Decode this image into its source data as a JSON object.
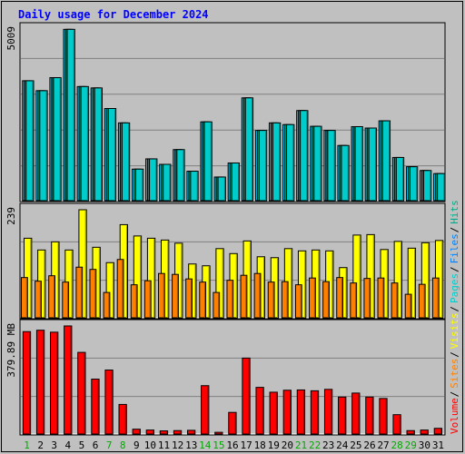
{
  "chart_data": {
    "type": "bar",
    "title": "Daily usage for December 2024",
    "colors": {
      "background": "#c0c0c0",
      "title": "#0000ff",
      "hits": "#00ccff",
      "files": "#009966",
      "pages": "#00cccc",
      "visits": "#ffff00",
      "sites": "#ff8000",
      "volume": "#ff0000",
      "weekend_label": "#00aa00",
      "weekday_label": "#000000",
      "grid": "#808080"
    },
    "categories": [
      "1",
      "2",
      "3",
      "4",
      "5",
      "6",
      "7",
      "8",
      "9",
      "10",
      "11",
      "12",
      "13",
      "14",
      "15",
      "16",
      "17",
      "18",
      "19",
      "20",
      "21",
      "22",
      "23",
      "24",
      "25",
      "26",
      "27",
      "28",
      "29",
      "30",
      "31"
    ],
    "weekend_days": [
      "1",
      "7",
      "8",
      "14",
      "15",
      "21",
      "22",
      "28",
      "29"
    ],
    "panels": [
      {
        "id": "hits-files-pages",
        "ylabel": "5009",
        "ylim": [
          0,
          5009
        ],
        "series": [
          {
            "name": "Hits",
            "color": "#00ccff",
            "values": [
              3500,
              3210,
              3590,
              5000,
              3330,
              3290,
              2690,
              2270,
              920,
              1220,
              1060,
              1490,
              860,
              2300,
              690,
              1100,
              3000,
              2050,
              2270,
              2220,
              2630,
              2170,
              2050,
              1610,
              2160,
              2120,
              2330,
              1260,
              990,
              880,
              790
            ]
          },
          {
            "name": "Files",
            "color": "#009966",
            "values": [
              3500,
              3210,
              3590,
              5000,
              3330,
              3290,
              2690,
              2270,
              920,
              1220,
              1060,
              1490,
              860,
              2300,
              690,
              1100,
              3000,
              2050,
              2270,
              2220,
              2630,
              2170,
              2050,
              1610,
              2160,
              2120,
              2330,
              1260,
              990,
              880,
              790
            ]
          },
          {
            "name": "Pages",
            "color": "#00cccc",
            "values": [
              3500,
              3210,
              3590,
              5000,
              3330,
              3290,
              2690,
              2270,
              920,
              1220,
              1060,
              1490,
              860,
              2300,
              690,
              1100,
              3000,
              2050,
              2270,
              2220,
              2630,
              2170,
              2050,
              1610,
              2160,
              2120,
              2330,
              1260,
              990,
              880,
              790
            ]
          }
        ]
      },
      {
        "id": "visits-sites",
        "ylabel": "239",
        "ylim": [
          0,
          239
        ],
        "series": [
          {
            "name": "Visits",
            "color": "#ffff00",
            "values": [
              176,
              150,
              168,
              150,
              239,
              156,
              122,
              206,
              181,
              176,
              172,
              165,
              119,
              115,
              153,
              142,
              170,
              135,
              133,
              153,
              148,
              150,
              148,
              111,
              183,
              184,
              151,
              169,
              154,
              166,
              171
            ]
          },
          {
            "name": "Sites",
            "color": "#ff8000",
            "values": [
              89,
              81,
              93,
              79,
              112,
              107,
              56,
              129,
              73,
              82,
              98,
              96,
              86,
              79,
              56,
              83,
              94,
              98,
              79,
              80,
              73,
              88,
              80,
              89,
              77,
              87,
              88,
              77,
              52,
              74,
              88
            ]
          }
        ]
      },
      {
        "id": "volume",
        "ylabel": "379.89 MB",
        "ylim": [
          0,
          379.89
        ],
        "series": [
          {
            "name": "Volume",
            "color": "#ff0000",
            "values": [
              360,
              365,
              358,
              380,
              287,
              193,
              225,
              104,
              17,
              14,
              11,
              12,
              13,
              170,
              6,
              76,
              267,
              164,
              147,
              154,
              155,
              152,
              157,
              130,
              144,
              130,
              125,
              68,
              12,
              14,
              20
            ]
          }
        ]
      }
    ],
    "legend_left": [
      "Hits",
      "/",
      "Files",
      "/",
      "Pages",
      "/",
      "Visits",
      "/",
      "Sites",
      "/",
      "Volume"
    ],
    "legend_left_colors": [
      "#00aa88",
      "#000000",
      "#0080ff",
      "#000000",
      "#00cccc",
      "#000000",
      "#ffff00",
      "#000000",
      "#ff8000",
      "#000000",
      "#ff0000"
    ]
  }
}
